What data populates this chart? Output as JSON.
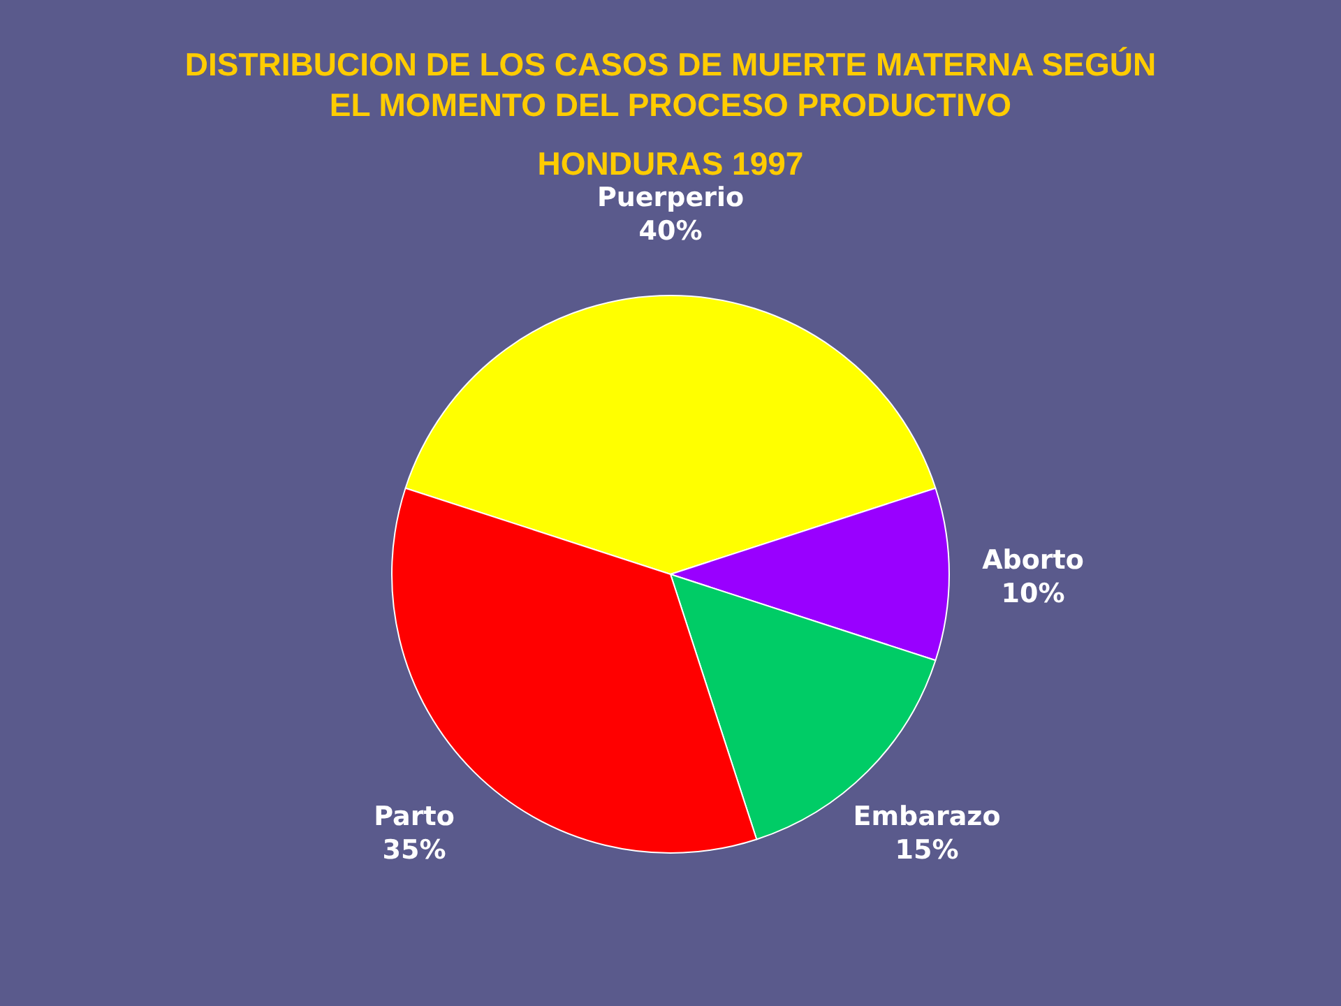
{
  "chart_data": {
    "type": "pie",
    "title": "DISTRIBUCION DE LOS CASOS DE MUERTE MATERNA SEGÚN EL MOMENTO DEL PROCESO PRODUCTIVO",
    "subtitle": "HONDURAS 1997",
    "categories": [
      "Puerperio",
      "Aborto",
      "Embarazo",
      "Parto"
    ],
    "values": [
      40,
      10,
      15,
      35
    ],
    "value_labels": [
      "40%",
      "10%",
      "15%",
      "35%"
    ],
    "colors": [
      "#ffff00",
      "#9900ff",
      "#00cc66",
      "#ff0000"
    ],
    "legend": false
  }
}
